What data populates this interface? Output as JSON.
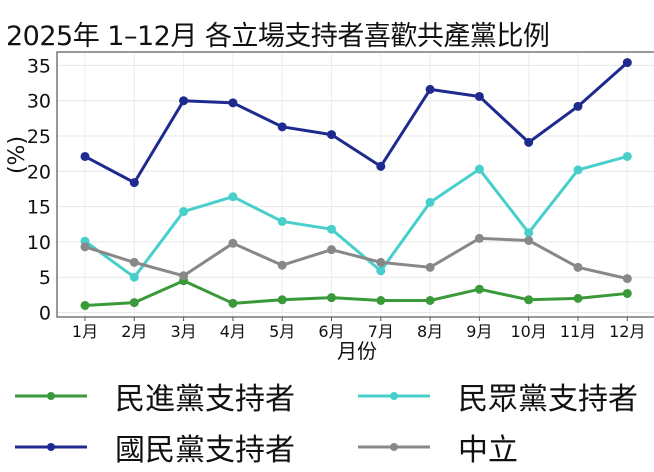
{
  "title": "2025年 1–12月 各立場支持者喜歡共產黨比例",
  "chart_data": {
    "type": "line",
    "title": "2025年 1–12月 各立場支持者喜歡共產黨比例",
    "xlabel": "月份",
    "ylabel": "(%)",
    "categories": [
      "1月",
      "2月",
      "3月",
      "4月",
      "5月",
      "6月",
      "7月",
      "8月",
      "9月",
      "10月",
      "11月",
      "12月"
    ],
    "ylim": [
      0,
      36
    ],
    "yticks": [
      0,
      5,
      10,
      15,
      20,
      25,
      30,
      35
    ],
    "grid": true,
    "legend_position": "bottom",
    "series": [
      {
        "name": "民進黨支持者",
        "color": "#3a9a3a",
        "values": [
          1.0,
          1.4,
          4.5,
          1.3,
          1.8,
          2.1,
          1.7,
          1.7,
          3.3,
          1.8,
          2.0,
          2.7
        ]
      },
      {
        "name": "民眾黨支持者",
        "color": "#48cfcb",
        "values": [
          10.1,
          5.0,
          14.3,
          16.4,
          12.9,
          11.8,
          5.9,
          15.6,
          20.3,
          11.3,
          20.2,
          22.1
        ]
      },
      {
        "name": "國民黨支持者",
        "color": "#1f2a8f",
        "values": [
          22.1,
          18.4,
          30.0,
          29.7,
          26.3,
          25.2,
          20.7,
          31.6,
          30.6,
          24.1,
          29.2,
          35.4
        ]
      },
      {
        "name": "中立",
        "color": "#888888",
        "values": [
          9.3,
          7.1,
          5.2,
          9.8,
          6.7,
          8.9,
          7.1,
          6.4,
          10.5,
          10.2,
          6.4,
          4.8
        ]
      }
    ]
  },
  "legend": {
    "items": [
      {
        "label": "民進黨支持者",
        "color": "#3a9a3a"
      },
      {
        "label": "民眾黨支持者",
        "color": "#48cfcb"
      },
      {
        "label": "國民黨支持者",
        "color": "#1f2a8f"
      },
      {
        "label": "中立",
        "color": "#888888"
      }
    ]
  }
}
